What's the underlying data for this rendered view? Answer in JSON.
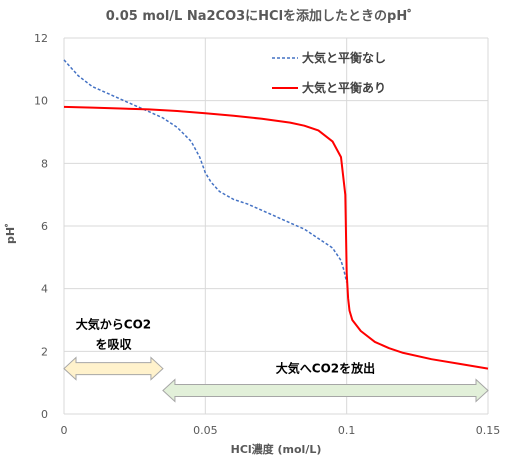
{
  "chart_data": {
    "type": "line",
    "title": "0.05 mol/L Na2CO3にHClを添加したときのpH゜",
    "xlabel": "HCl濃度 (mol/L)",
    "ylabel": "pH゜",
    "xlim": [
      0,
      0.15
    ],
    "ylim": [
      0,
      12
    ],
    "x_ticks": [
      "0",
      "0.05",
      "0.1",
      "0.15"
    ],
    "y_ticks": [
      "0",
      "2",
      "4",
      "6",
      "8",
      "10",
      "12"
    ],
    "grid": true,
    "legend": "top-right",
    "series": [
      {
        "name": "大気と平衡なし",
        "style": "dashed",
        "color": "#4472C4",
        "x": [
          0,
          0.005,
          0.01,
          0.015,
          0.02,
          0.025,
          0.03,
          0.035,
          0.04,
          0.045,
          0.048,
          0.05,
          0.052,
          0.055,
          0.06,
          0.065,
          0.07,
          0.075,
          0.08,
          0.085,
          0.09,
          0.095,
          0.098,
          0.099,
          0.1
        ],
        "values": [
          11.3,
          10.8,
          10.45,
          10.25,
          10.05,
          9.85,
          9.65,
          9.45,
          9.15,
          8.7,
          8.2,
          7.7,
          7.4,
          7.1,
          6.85,
          6.7,
          6.5,
          6.3,
          6.1,
          5.9,
          5.6,
          5.3,
          4.9,
          4.6,
          4.2
        ]
      },
      {
        "name": "大気と平衡あり",
        "style": "solid",
        "color": "#FF0000",
        "x": [
          0,
          0.01,
          0.02,
          0.03,
          0.04,
          0.05,
          0.06,
          0.07,
          0.08,
          0.085,
          0.09,
          0.095,
          0.098,
          0.0995,
          0.1,
          0.1005,
          0.101,
          0.102,
          0.105,
          0.11,
          0.115,
          0.12,
          0.13,
          0.14,
          0.15
        ],
        "values": [
          9.8,
          9.78,
          9.75,
          9.72,
          9.67,
          9.6,
          9.52,
          9.42,
          9.3,
          9.2,
          9.05,
          8.7,
          8.2,
          7.0,
          4.5,
          3.7,
          3.3,
          3.0,
          2.65,
          2.3,
          2.1,
          1.95,
          1.75,
          1.6,
          1.45
        ]
      }
    ],
    "annotations": [
      {
        "text_lines": [
          "大気からCO2",
          "を吸収"
        ],
        "arrow_x": [
          0,
          0.035
        ],
        "arrow_y": 1.45,
        "fill": "#FFF2CC"
      },
      {
        "text_lines": [
          "大気へCO2を放出"
        ],
        "arrow_x": [
          0.035,
          0.15
        ],
        "arrow_y": 0.75,
        "fill": "#E2F0D9"
      }
    ]
  }
}
